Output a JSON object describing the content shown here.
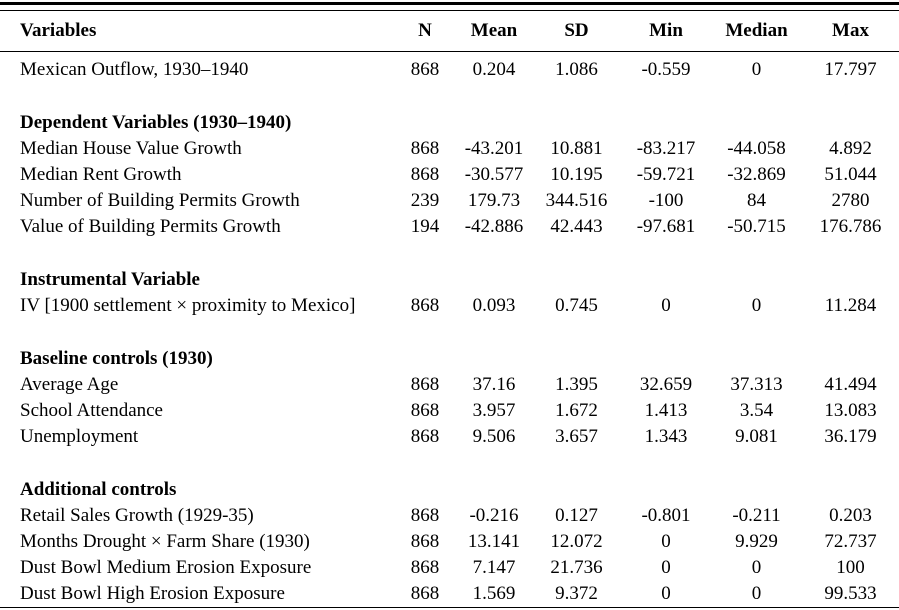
{
  "table": {
    "columns": [
      "Variables",
      "N",
      "Mean",
      "SD",
      "Min",
      "Median",
      "Max"
    ],
    "rows": [
      {
        "type": "data",
        "label": "Mexican Outflow, 1930–1940",
        "values": [
          "868",
          "0.204",
          "1.086",
          "-0.559",
          "0",
          "17.797"
        ]
      },
      {
        "type": "spacer"
      },
      {
        "type": "section",
        "label": "Dependent Variables (1930–1940)"
      },
      {
        "type": "data",
        "label": "Median House Value Growth",
        "values": [
          "868",
          "-43.201",
          "10.881",
          "-83.217",
          "-44.058",
          "4.892"
        ]
      },
      {
        "type": "data",
        "label": "Median Rent Growth",
        "values": [
          "868",
          "-30.577",
          "10.195",
          "-59.721",
          "-32.869",
          "51.044"
        ]
      },
      {
        "type": "data",
        "label": "Number of Building Permits Growth",
        "values": [
          "239",
          "179.73",
          "344.516",
          "-100",
          "84",
          "2780"
        ]
      },
      {
        "type": "data",
        "label": "Value of Building Permits Growth",
        "values": [
          "194",
          "-42.886",
          "42.443",
          "-97.681",
          "-50.715",
          "176.786"
        ]
      },
      {
        "type": "spacer"
      },
      {
        "type": "section",
        "label": "Instrumental Variable"
      },
      {
        "type": "data",
        "label": "IV [1900 settlement × proximity to Mexico]",
        "values": [
          "868",
          "0.093",
          "0.745",
          "0",
          "0",
          "11.284"
        ]
      },
      {
        "type": "spacer"
      },
      {
        "type": "section",
        "label": "Baseline controls (1930)"
      },
      {
        "type": "data",
        "label": "Average Age",
        "values": [
          "868",
          "37.16",
          "1.395",
          "32.659",
          "37.313",
          "41.494"
        ]
      },
      {
        "type": "data",
        "label": "School Attendance",
        "values": [
          "868",
          "3.957",
          "1.672",
          "1.413",
          "3.54",
          "13.083"
        ]
      },
      {
        "type": "data",
        "label": "Unemployment",
        "values": [
          "868",
          "9.506",
          "3.657",
          "1.343",
          "9.081",
          "36.179"
        ]
      },
      {
        "type": "spacer"
      },
      {
        "type": "section",
        "label": "Additional controls"
      },
      {
        "type": "data",
        "label": "Retail Sales Growth (1929-35)",
        "values": [
          "868",
          "-0.216",
          "0.127",
          "-0.801",
          "-0.211",
          "0.203"
        ]
      },
      {
        "type": "data",
        "label": "Months Drought × Farm Share (1930)",
        "values": [
          "868",
          "13.141",
          "12.072",
          "0",
          "9.929",
          "72.737"
        ]
      },
      {
        "type": "data",
        "label": "Dust Bowl Medium Erosion Exposure",
        "values": [
          "868",
          "7.147",
          "21.736",
          "0",
          "0",
          "100"
        ]
      },
      {
        "type": "data",
        "label": "Dust Bowl High Erosion Exposure",
        "values": [
          "868",
          "1.569",
          "9.372",
          "0",
          "0",
          "99.533"
        ]
      }
    ]
  }
}
